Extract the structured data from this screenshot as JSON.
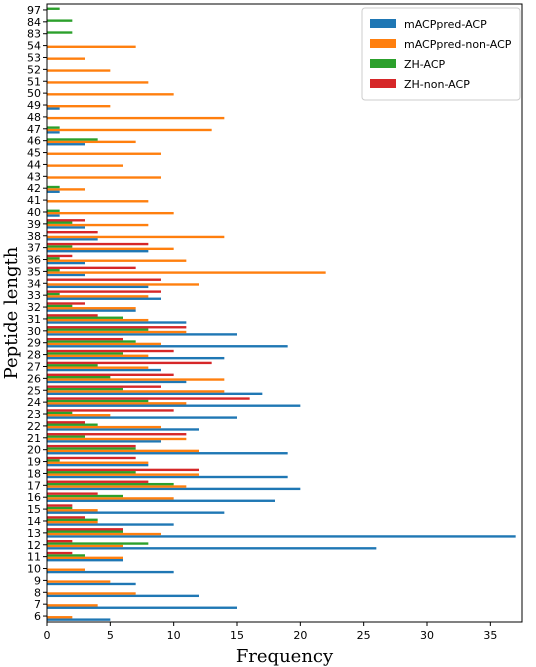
{
  "chart_data": {
    "type": "bar",
    "orientation": "horizontal",
    "title": "",
    "xlabel": "Frequency",
    "ylabel": "Peptide length",
    "xlim": [
      0,
      37.5
    ],
    "xticks": [
      0,
      5,
      10,
      15,
      20,
      25,
      30,
      35
    ],
    "grid": false,
    "legend_position": "top-right",
    "categories": [
      "6",
      "7",
      "8",
      "9",
      "10",
      "11",
      "12",
      "13",
      "14",
      "15",
      "16",
      "17",
      "18",
      "19",
      "20",
      "21",
      "22",
      "23",
      "24",
      "25",
      "26",
      "27",
      "28",
      "29",
      "30",
      "31",
      "32",
      "33",
      "34",
      "35",
      "36",
      "37",
      "38",
      "39",
      "40",
      "41",
      "42",
      "43",
      "44",
      "45",
      "46",
      "47",
      "48",
      "49",
      "50",
      "51",
      "52",
      "53",
      "54",
      "83",
      "84",
      "97"
    ],
    "series": [
      {
        "name": "mACPpred-ACP",
        "color": "#1f77b4",
        "values": [
          5,
          15,
          12,
          7,
          10,
          6,
          26,
          37,
          10,
          14,
          18,
          20,
          19,
          8,
          19,
          9,
          12,
          15,
          20,
          17,
          11,
          9,
          14,
          19,
          15,
          11,
          7,
          9,
          8,
          3,
          3,
          8,
          4,
          3,
          1,
          0,
          1,
          0,
          0,
          0,
          3,
          1,
          0,
          1,
          0,
          0,
          0,
          0,
          0,
          0,
          0,
          0
        ]
      },
      {
        "name": "mACPpred-non-ACP",
        "color": "#ff7f0e",
        "values": [
          2,
          4,
          7,
          5,
          3,
          6,
          6,
          9,
          4,
          4,
          10,
          11,
          12,
          8,
          12,
          11,
          9,
          5,
          11,
          14,
          14,
          8,
          8,
          9,
          11,
          8,
          7,
          8,
          12,
          22,
          11,
          10,
          14,
          8,
          10,
          8,
          3,
          9,
          6,
          9,
          7,
          13,
          14,
          5,
          10,
          8,
          5,
          3,
          7,
          0,
          0,
          0
        ]
      },
      {
        "name": "ZH-ACP",
        "color": "#2ca02c",
        "values": [
          0,
          0,
          0,
          0,
          0,
          3,
          8,
          6,
          4,
          2,
          6,
          10,
          7,
          1,
          7,
          3,
          4,
          2,
          8,
          6,
          5,
          4,
          6,
          7,
          8,
          6,
          2,
          1,
          0,
          1,
          1,
          2,
          0,
          2,
          1,
          0,
          1,
          0,
          0,
          0,
          4,
          1,
          0,
          0,
          0,
          0,
          0,
          0,
          0,
          2,
          2,
          1
        ]
      },
      {
        "name": "ZH-non-ACP",
        "color": "#d62728",
        "values": [
          0,
          0,
          0,
          0,
          0,
          2,
          2,
          6,
          3,
          2,
          4,
          8,
          12,
          7,
          7,
          11,
          3,
          10,
          16,
          9,
          10,
          13,
          10,
          6,
          11,
          4,
          3,
          9,
          9,
          7,
          2,
          8,
          4,
          3,
          0,
          0,
          0,
          0,
          0,
          0,
          0,
          0,
          0,
          0,
          0,
          0,
          0,
          0,
          0,
          0,
          0,
          0
        ]
      }
    ]
  }
}
